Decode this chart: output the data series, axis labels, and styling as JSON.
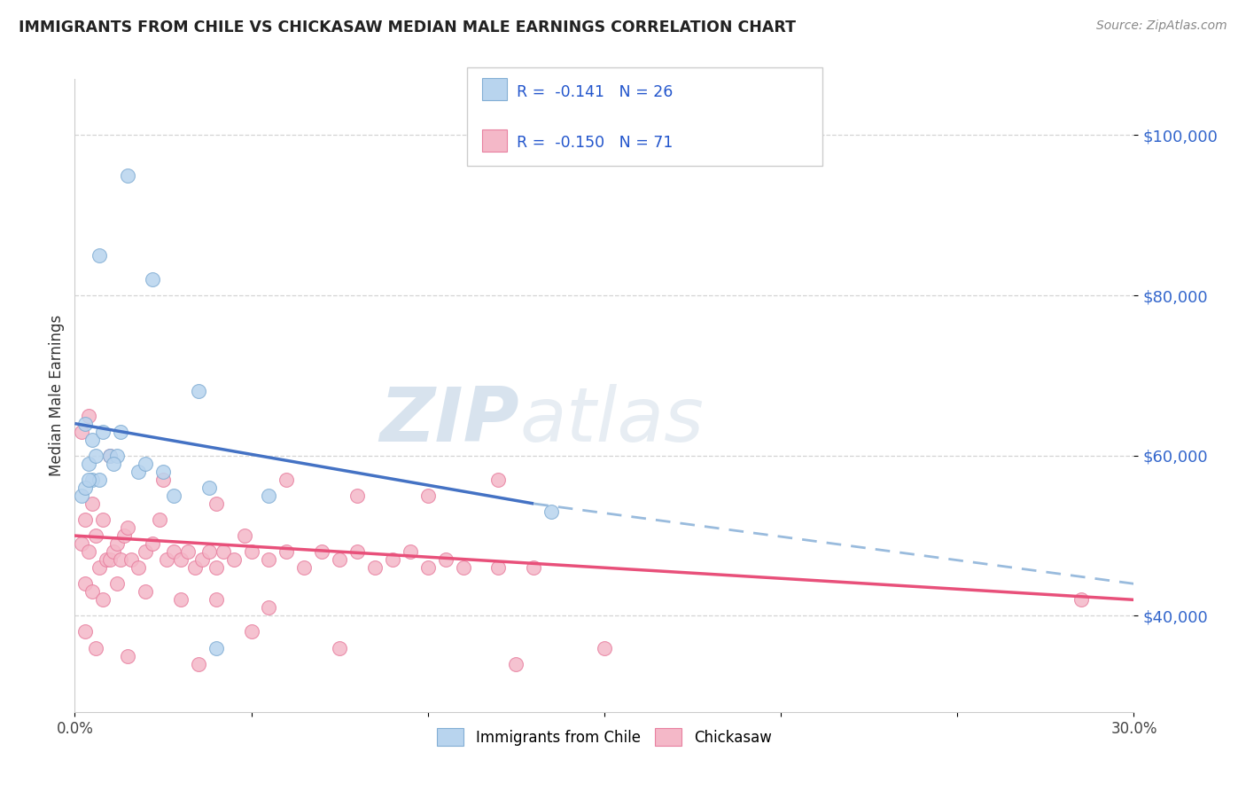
{
  "title": "IMMIGRANTS FROM CHILE VS CHICKASAW MEDIAN MALE EARNINGS CORRELATION CHART",
  "source": "Source: ZipAtlas.com",
  "ylabel": "Median Male Earnings",
  "xmin": 0.0,
  "xmax": 30.0,
  "ymin": 28000,
  "ymax": 107000,
  "yticks": [
    40000,
    60000,
    80000,
    100000
  ],
  "ytick_labels": [
    "$40,000",
    "$60,000",
    "$80,000",
    "$100,000"
  ],
  "grid_color": "#d0d0d0",
  "background_color": "#ffffff",
  "blue_dot_face": "#b8d4ee",
  "blue_dot_edge": "#82aed4",
  "pink_dot_face": "#f4b8c8",
  "pink_dot_edge": "#e880a0",
  "trend_blue": "#4472c4",
  "trend_pink": "#e8507a",
  "dashed_color": "#99bbdd",
  "legend_line1": "R =  -0.141   N = 26",
  "legend_line2": "R =  -0.150   N = 71",
  "label_blue": "Immigrants from Chile",
  "label_pink": "Chickasaw",
  "watermark_zip": "ZIP",
  "watermark_atlas": "atlas",
  "blue_trend_x0": 0.0,
  "blue_trend_y0": 64000,
  "blue_trend_x1": 13.0,
  "blue_trend_y1": 54000,
  "dash_trend_x0": 13.0,
  "dash_trend_y0": 54000,
  "dash_trend_x1": 30.0,
  "dash_trend_y1": 44000,
  "pink_trend_x0": 0.0,
  "pink_trend_y0": 50000,
  "pink_trend_x1": 30.0,
  "pink_trend_y1": 42000,
  "blue_x": [
    1.5,
    0.7,
    2.2,
    3.5,
    0.3,
    0.5,
    0.8,
    1.0,
    1.2,
    0.4,
    0.6,
    1.8,
    2.0,
    0.5,
    0.7,
    1.1,
    1.3,
    2.5,
    0.2,
    0.3,
    0.4,
    2.8,
    3.8,
    5.5,
    13.5,
    4.0
  ],
  "blue_y": [
    95000,
    85000,
    82000,
    68000,
    64000,
    62000,
    63000,
    60000,
    60000,
    59000,
    60000,
    58000,
    59000,
    57000,
    57000,
    59000,
    63000,
    58000,
    55000,
    56000,
    57000,
    55000,
    56000,
    55000,
    53000,
    36000
  ],
  "pink_x": [
    0.2,
    0.3,
    0.4,
    0.5,
    0.6,
    0.7,
    0.8,
    0.9,
    1.0,
    1.1,
    1.2,
    1.3,
    1.4,
    1.5,
    1.6,
    1.8,
    2.0,
    2.2,
    2.4,
    2.6,
    2.8,
    3.0,
    3.2,
    3.4,
    3.6,
    3.8,
    4.0,
    4.2,
    4.5,
    4.8,
    5.0,
    5.5,
    6.0,
    6.5,
    7.0,
    7.5,
    8.0,
    8.5,
    9.0,
    9.5,
    10.0,
    10.5,
    11.0,
    12.0,
    13.0,
    0.3,
    0.5,
    0.8,
    1.2,
    2.0,
    3.0,
    4.0,
    5.5,
    0.2,
    0.4,
    1.0,
    2.5,
    4.0,
    6.0,
    8.0,
    10.0,
    12.0,
    0.3,
    0.6,
    1.5,
    3.5,
    5.0,
    7.5,
    12.5,
    28.5,
    15.0
  ],
  "pink_y": [
    49000,
    52000,
    48000,
    54000,
    50000,
    46000,
    52000,
    47000,
    47000,
    48000,
    49000,
    47000,
    50000,
    51000,
    47000,
    46000,
    48000,
    49000,
    52000,
    47000,
    48000,
    47000,
    48000,
    46000,
    47000,
    48000,
    46000,
    48000,
    47000,
    50000,
    48000,
    47000,
    48000,
    46000,
    48000,
    47000,
    48000,
    46000,
    47000,
    48000,
    46000,
    47000,
    46000,
    46000,
    46000,
    44000,
    43000,
    42000,
    44000,
    43000,
    42000,
    42000,
    41000,
    63000,
    65000,
    60000,
    57000,
    54000,
    57000,
    55000,
    55000,
    57000,
    38000,
    36000,
    35000,
    34000,
    38000,
    36000,
    34000,
    42000,
    36000
  ]
}
